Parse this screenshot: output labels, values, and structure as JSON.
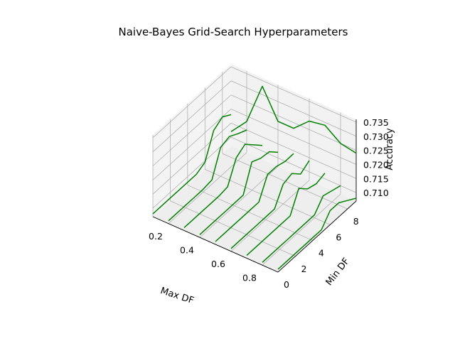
{
  "chart_data": {
    "type": "line",
    "projection": "3d",
    "title": "Naive-Bayes Grid-Search Hyperparameters",
    "xlabel": "Max DF",
    "ylabel": "Min DF",
    "zlabel": "Accuracy",
    "xlim": [
      0.1,
      0.9
    ],
    "ylim": [
      0,
      9
    ],
    "zlim": [
      0.707,
      0.736
    ],
    "x_ticks": [
      "0.2",
      "0.4",
      "0.6",
      "0.8"
    ],
    "y_ticks": [
      "0",
      "2",
      "4",
      "6",
      "8"
    ],
    "z_ticks": [
      "0.710",
      "0.715",
      "0.720",
      "0.725",
      "0.730",
      "0.735"
    ],
    "grid": true,
    "color": "#008000",
    "min_df": [
      0,
      1,
      2,
      3,
      4,
      5,
      6,
      7,
      8,
      9
    ],
    "series": [
      {
        "max_df": 0.1,
        "values": [
          0.708,
          0.708,
          0.708,
          0.708,
          0.708,
          0.708,
          0.7095,
          0.718,
          0.72,
          0.718
        ]
      },
      {
        "max_df": 0.2,
        "values": [
          0.708,
          0.708,
          0.708,
          0.708,
          0.708,
          0.7085,
          0.7172,
          0.7183,
          0.7165,
          0.715
        ]
      },
      {
        "max_df": 0.3,
        "values": [
          0.708,
          0.708,
          0.708,
          0.708,
          0.708,
          0.7085,
          0.716,
          0.718,
          0.715,
          0.712
        ]
      },
      {
        "max_df": 0.4,
        "values": [
          0.708,
          0.708,
          0.708,
          0.708,
          0.708,
          0.708,
          0.717,
          0.7155,
          0.715,
          0.712
        ]
      },
      {
        "max_df": 0.5,
        "values": [
          0.708,
          0.708,
          0.708,
          0.708,
          0.708,
          0.708,
          0.715,
          0.715,
          0.714,
          0.714
        ]
      },
      {
        "max_df": 0.6,
        "values": [
          0.708,
          0.708,
          0.708,
          0.708,
          0.708,
          0.708,
          0.714,
          0.715,
          0.712,
          0.714
        ]
      },
      {
        "max_df": 0.7,
        "values": [
          0.708,
          0.708,
          0.708,
          0.708,
          0.708,
          0.708,
          0.715,
          0.712,
          0.711,
          0.712
        ]
      },
      {
        "max_df": 0.8,
        "values": [
          0.708,
          0.708,
          0.708,
          0.708,
          0.708,
          0.708,
          0.708,
          0.712,
          0.711,
          0.71
        ]
      },
      {
        "max_df": 0.9,
        "values": [
          0.708,
          0.708,
          0.708,
          0.708,
          0.708,
          0.708,
          0.712,
          0.712,
          0.71,
          0.708
        ]
      }
    ],
    "mindf_curve": {
      "max_df": [
        0.1,
        0.2,
        0.3,
        0.4,
        0.5,
        0.6,
        0.7,
        0.8,
        0.9
      ],
      "min_df": 9,
      "values": [
        0.712,
        0.718,
        0.733,
        0.723,
        0.723,
        0.728,
        0.729,
        0.725,
        0.724
      ]
    }
  }
}
